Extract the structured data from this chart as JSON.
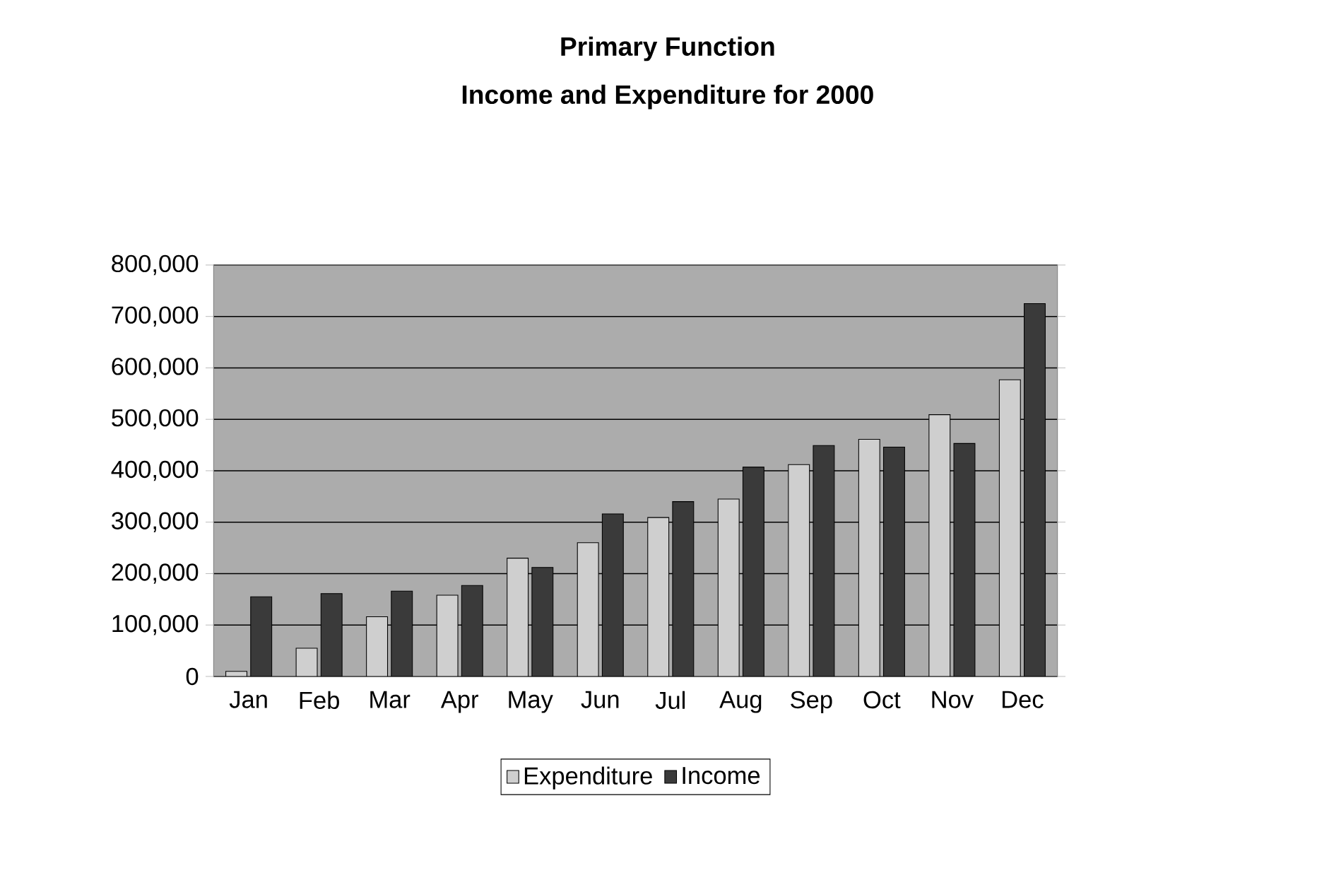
{
  "chart_data": {
    "type": "bar",
    "title": "Primary Function",
    "subtitle": "Income and Expenditure for 2000",
    "categories": [
      "Jan",
      "Feb",
      "Mar",
      "Apr",
      "May",
      "Jun",
      "Jul",
      "Aug",
      "Sep",
      "Oct",
      "Nov",
      "Dec"
    ],
    "series": [
      {
        "name": "Expenditure",
        "color": "#cfcfcf",
        "values": [
          10000,
          55000,
          116000,
          158000,
          230000,
          260000,
          309000,
          345000,
          412000,
          461000,
          509000,
          577000
        ]
      },
      {
        "name": "Income",
        "color": "#3a3a3a",
        "values": [
          155000,
          161000,
          166000,
          177000,
          212000,
          316000,
          340000,
          407000,
          449000,
          446000,
          453000,
          725000
        ]
      }
    ],
    "ylim": [
      0,
      800000
    ],
    "yticks": [
      {
        "value": 0,
        "label": "0"
      },
      {
        "value": 100000,
        "label": "100,000"
      },
      {
        "value": 200000,
        "label": "200,000"
      },
      {
        "value": 300000,
        "label": "300,000"
      },
      {
        "value": 400000,
        "label": "400,000"
      },
      {
        "value": 500000,
        "label": "500,000"
      },
      {
        "value": 600000,
        "label": "600,000"
      },
      {
        "value": 700000,
        "label": "700,000"
      },
      {
        "value": 800000,
        "label": "800,000"
      }
    ],
    "grid": "y",
    "legend": "bottom"
  }
}
